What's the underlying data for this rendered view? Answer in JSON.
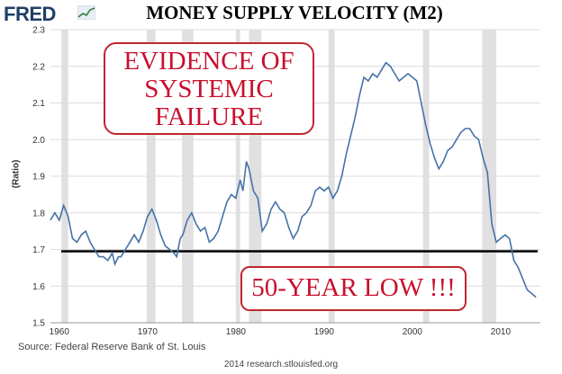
{
  "header": {
    "logo_text": "FRED",
    "title": "MONEY SUPPLY VELOCITY (M2)"
  },
  "annotations": {
    "systemic": [
      "EVIDENCE OF",
      "SYSTEMIC",
      "FAILURE"
    ],
    "low": "50-YEAR LOW !!!"
  },
  "footer": {
    "source": "Source: Federal Reserve Bank of St. Louis",
    "credit": "2014 research.stlouisfed.org"
  },
  "colors": {
    "line": "#4572a7",
    "recession": "#e0e0e0",
    "grid": "#dcdcdc",
    "annotation_red": "#c8102e",
    "hline": "#000000"
  },
  "chart_data": {
    "type": "line",
    "title": "MONEY SUPPLY VELOCITY (M2)",
    "ylabel": "(Ratio)",
    "xlabel": "",
    "xlim": [
      1959,
      2014.5
    ],
    "ylim": [
      1.5,
      2.3
    ],
    "xticks": [
      1960,
      1970,
      1980,
      1990,
      2000,
      2010
    ],
    "yticks": [
      1.5,
      1.6,
      1.7,
      1.8,
      1.9,
      2.0,
      2.1,
      2.2,
      2.3
    ],
    "grid": true,
    "reference_line": 1.695,
    "recessions": [
      [
        1960.25,
        1961.0
      ],
      [
        1969.9,
        1970.9
      ],
      [
        1973.9,
        1975.2
      ],
      [
        1980.0,
        1980.5
      ],
      [
        1981.5,
        1982.9
      ],
      [
        1990.5,
        1991.2
      ],
      [
        2001.2,
        2001.9
      ],
      [
        2007.9,
        2009.5
      ]
    ],
    "series": [
      {
        "points": [
          [
            1959.0,
            1.78
          ],
          [
            1959.5,
            1.8
          ],
          [
            1960.0,
            1.78
          ],
          [
            1960.5,
            1.82
          ],
          [
            1961.0,
            1.79
          ],
          [
            1961.5,
            1.73
          ],
          [
            1962.0,
            1.72
          ],
          [
            1962.5,
            1.74
          ],
          [
            1963.0,
            1.75
          ],
          [
            1963.5,
            1.72
          ],
          [
            1964.0,
            1.7
          ],
          [
            1964.5,
            1.68
          ],
          [
            1965.0,
            1.68
          ],
          [
            1965.5,
            1.67
          ],
          [
            1966.0,
            1.69
          ],
          [
            1966.3,
            1.66
          ],
          [
            1966.7,
            1.68
          ],
          [
            1967.0,
            1.68
          ],
          [
            1967.5,
            1.7
          ],
          [
            1968.0,
            1.72
          ],
          [
            1968.5,
            1.74
          ],
          [
            1969.0,
            1.72
          ],
          [
            1969.5,
            1.75
          ],
          [
            1970.0,
            1.79
          ],
          [
            1970.5,
            1.81
          ],
          [
            1971.0,
            1.78
          ],
          [
            1971.5,
            1.74
          ],
          [
            1972.0,
            1.71
          ],
          [
            1972.5,
            1.7
          ],
          [
            1973.0,
            1.69
          ],
          [
            1973.3,
            1.68
          ],
          [
            1973.7,
            1.73
          ],
          [
            1974.0,
            1.74
          ],
          [
            1974.5,
            1.78
          ],
          [
            1975.0,
            1.8
          ],
          [
            1975.5,
            1.77
          ],
          [
            1976.0,
            1.75
          ],
          [
            1976.5,
            1.76
          ],
          [
            1977.0,
            1.72
          ],
          [
            1977.5,
            1.73
          ],
          [
            1978.0,
            1.75
          ],
          [
            1978.5,
            1.79
          ],
          [
            1979.0,
            1.83
          ],
          [
            1979.5,
            1.85
          ],
          [
            1980.0,
            1.84
          ],
          [
            1980.5,
            1.89
          ],
          [
            1980.8,
            1.86
          ],
          [
            1981.2,
            1.94
          ],
          [
            1981.5,
            1.92
          ],
          [
            1982.0,
            1.86
          ],
          [
            1982.5,
            1.84
          ],
          [
            1983.0,
            1.75
          ],
          [
            1983.5,
            1.77
          ],
          [
            1984.0,
            1.81
          ],
          [
            1984.5,
            1.83
          ],
          [
            1985.0,
            1.81
          ],
          [
            1985.5,
            1.8
          ],
          [
            1986.0,
            1.76
          ],
          [
            1986.5,
            1.73
          ],
          [
            1987.0,
            1.75
          ],
          [
            1987.5,
            1.79
          ],
          [
            1988.0,
            1.8
          ],
          [
            1988.5,
            1.82
          ],
          [
            1989.0,
            1.86
          ],
          [
            1989.5,
            1.87
          ],
          [
            1990.0,
            1.86
          ],
          [
            1990.5,
            1.87
          ],
          [
            1991.0,
            1.84
          ],
          [
            1991.5,
            1.86
          ],
          [
            1992.0,
            1.9
          ],
          [
            1992.5,
            1.96
          ],
          [
            1993.0,
            2.01
          ],
          [
            1993.5,
            2.06
          ],
          [
            1994.0,
            2.12
          ],
          [
            1994.5,
            2.17
          ],
          [
            1995.0,
            2.16
          ],
          [
            1995.5,
            2.18
          ],
          [
            1996.0,
            2.17
          ],
          [
            1996.5,
            2.19
          ],
          [
            1997.0,
            2.21
          ],
          [
            1997.5,
            2.2
          ],
          [
            1998.0,
            2.18
          ],
          [
            1998.5,
            2.16
          ],
          [
            1999.0,
            2.17
          ],
          [
            1999.5,
            2.18
          ],
          [
            2000.0,
            2.17
          ],
          [
            2000.5,
            2.16
          ],
          [
            2001.0,
            2.1
          ],
          [
            2001.5,
            2.04
          ],
          [
            2002.0,
            1.99
          ],
          [
            2002.5,
            1.95
          ],
          [
            2003.0,
            1.92
          ],
          [
            2003.5,
            1.94
          ],
          [
            2004.0,
            1.97
          ],
          [
            2004.5,
            1.98
          ],
          [
            2005.0,
            2.0
          ],
          [
            2005.5,
            2.02
          ],
          [
            2006.0,
            2.03
          ],
          [
            2006.5,
            2.03
          ],
          [
            2007.0,
            2.01
          ],
          [
            2007.5,
            2.0
          ],
          [
            2008.0,
            1.95
          ],
          [
            2008.5,
            1.91
          ],
          [
            2009.0,
            1.77
          ],
          [
            2009.5,
            1.72
          ],
          [
            2010.0,
            1.73
          ],
          [
            2010.5,
            1.74
          ],
          [
            2011.0,
            1.73
          ],
          [
            2011.5,
            1.67
          ],
          [
            2012.0,
            1.65
          ],
          [
            2012.5,
            1.62
          ],
          [
            2013.0,
            1.59
          ],
          [
            2013.5,
            1.58
          ],
          [
            2014.0,
            1.57
          ]
        ]
      }
    ]
  }
}
